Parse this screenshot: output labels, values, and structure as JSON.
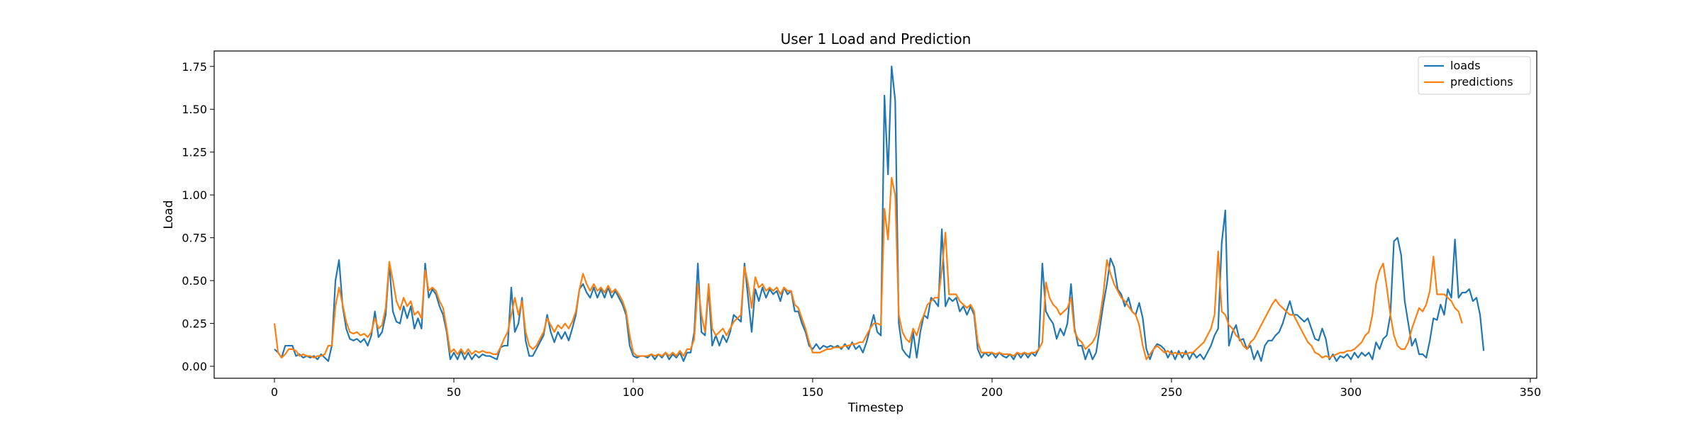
{
  "chart_data": {
    "type": "line",
    "title": "User 1 Load and Prediction",
    "xlabel": "Timestep",
    "ylabel": "Load",
    "xlim": [
      -16.8,
      351.8
    ],
    "ylim": [
      -0.07,
      1.84
    ],
    "xticks": [
      0,
      50,
      100,
      150,
      200,
      250,
      300,
      350
    ],
    "xtick_labels": [
      "0",
      "50",
      "100",
      "150",
      "200",
      "250",
      "300",
      "350"
    ],
    "yticks": [
      0.0,
      0.25,
      0.5,
      0.75,
      1.0,
      1.25,
      1.5,
      1.75
    ],
    "ytick_labels": [
      "0.00",
      "0.25",
      "0.50",
      "0.75",
      "1.00",
      "1.25",
      "1.50",
      "1.75"
    ],
    "grid": false,
    "legend_position": "top-right",
    "x_start": 0,
    "series": [
      {
        "name": "loads",
        "color": "#1f77b4",
        "values": [
          0.1,
          0.08,
          0.05,
          0.12,
          0.12,
          0.12,
          0.06,
          0.07,
          0.05,
          0.06,
          0.05,
          0.06,
          0.04,
          0.07,
          0.05,
          0.03,
          0.12,
          0.5,
          0.62,
          0.35,
          0.22,
          0.16,
          0.15,
          0.16,
          0.14,
          0.16,
          0.12,
          0.18,
          0.32,
          0.17,
          0.2,
          0.3,
          0.6,
          0.32,
          0.26,
          0.25,
          0.35,
          0.28,
          0.35,
          0.22,
          0.28,
          0.22,
          0.6,
          0.4,
          0.45,
          0.42,
          0.35,
          0.3,
          0.2,
          0.04,
          0.08,
          0.04,
          0.09,
          0.04,
          0.08,
          0.04,
          0.07,
          0.05,
          0.07,
          0.06,
          0.06,
          0.05,
          0.04,
          0.11,
          0.12,
          0.12,
          0.46,
          0.2,
          0.25,
          0.4,
          0.15,
          0.06,
          0.06,
          0.1,
          0.14,
          0.18,
          0.3,
          0.2,
          0.14,
          0.2,
          0.16,
          0.2,
          0.15,
          0.22,
          0.3,
          0.45,
          0.48,
          0.43,
          0.4,
          0.46,
          0.4,
          0.45,
          0.4,
          0.46,
          0.4,
          0.44,
          0.4,
          0.36,
          0.3,
          0.12,
          0.06,
          0.05,
          0.06,
          0.06,
          0.05,
          0.07,
          0.04,
          0.07,
          0.05,
          0.08,
          0.04,
          0.07,
          0.05,
          0.08,
          0.03,
          0.08,
          0.08,
          0.2,
          0.6,
          0.2,
          0.18,
          0.46,
          0.12,
          0.18,
          0.12,
          0.18,
          0.14,
          0.2,
          0.3,
          0.28,
          0.26,
          0.6,
          0.4,
          0.2,
          0.45,
          0.38,
          0.46,
          0.4,
          0.45,
          0.42,
          0.44,
          0.38,
          0.46,
          0.42,
          0.44,
          0.32,
          0.32,
          0.25,
          0.2,
          0.12,
          0.1,
          0.13,
          0.1,
          0.12,
          0.11,
          0.12,
          0.11,
          0.12,
          0.1,
          0.13,
          0.1,
          0.14,
          0.1,
          0.12,
          0.08,
          0.14,
          0.22,
          0.3,
          0.2,
          0.18,
          1.58,
          1.12,
          1.75,
          1.55,
          0.25,
          0.1,
          0.07,
          0.05,
          0.2,
          0.05,
          0.2,
          0.3,
          0.28,
          0.4,
          0.38,
          0.35,
          0.8,
          0.35,
          0.4,
          0.38,
          0.4,
          0.32,
          0.35,
          0.3,
          0.35,
          0.3,
          0.1,
          0.05,
          0.08,
          0.06,
          0.08,
          0.05,
          0.08,
          0.06,
          0.05,
          0.07,
          0.04,
          0.08,
          0.05,
          0.08,
          0.05,
          0.08,
          0.06,
          0.1,
          0.6,
          0.32,
          0.28,
          0.25,
          0.16,
          0.22,
          0.18,
          0.25,
          0.48,
          0.22,
          0.12,
          0.12,
          0.04,
          0.1,
          0.04,
          0.08,
          0.22,
          0.36,
          0.48,
          0.63,
          0.58,
          0.45,
          0.42,
          0.35,
          0.4,
          0.32,
          0.3,
          0.37,
          0.28,
          0.1,
          0.04,
          0.1,
          0.13,
          0.12,
          0.1,
          0.05,
          0.09,
          0.04,
          0.09,
          0.05,
          0.09,
          0.04,
          0.08,
          0.05,
          0.07,
          0.04,
          0.08,
          0.12,
          0.18,
          0.22,
          0.72,
          0.91,
          0.12,
          0.2,
          0.24,
          0.15,
          0.16,
          0.1,
          0.12,
          0.04,
          0.09,
          0.03,
          0.12,
          0.15,
          0.15,
          0.18,
          0.2,
          0.25,
          0.32,
          0.38,
          0.3,
          0.3,
          0.28,
          0.26,
          0.28,
          0.22,
          0.16,
          0.15,
          0.22,
          0.16,
          0.04,
          0.07,
          0.03,
          0.06,
          0.05,
          0.07,
          0.04,
          0.08,
          0.05,
          0.08,
          0.06,
          0.08,
          0.04,
          0.14,
          0.1,
          0.16,
          0.18,
          0.3,
          0.73,
          0.75,
          0.65,
          0.38,
          0.25,
          0.12,
          0.16,
          0.07,
          0.07,
          0.05,
          0.15,
          0.28,
          0.27,
          0.36,
          0.3,
          0.45,
          0.4,
          0.74,
          0.4,
          0.43,
          0.43,
          0.45,
          0.38,
          0.4,
          0.3,
          0.09
        ]
      },
      {
        "name": "predictions",
        "color": "#ff7f0e",
        "values": [
          0.25,
          0.08,
          0.05,
          0.07,
          0.1,
          0.1,
          0.09,
          0.06,
          0.07,
          0.06,
          0.06,
          0.05,
          0.06,
          0.06,
          0.07,
          0.12,
          0.12,
          0.35,
          0.46,
          0.36,
          0.26,
          0.2,
          0.19,
          0.2,
          0.18,
          0.19,
          0.17,
          0.2,
          0.28,
          0.22,
          0.24,
          0.34,
          0.61,
          0.5,
          0.38,
          0.33,
          0.4,
          0.35,
          0.38,
          0.3,
          0.32,
          0.28,
          0.56,
          0.44,
          0.46,
          0.44,
          0.38,
          0.34,
          0.22,
          0.08,
          0.1,
          0.07,
          0.1,
          0.07,
          0.1,
          0.07,
          0.09,
          0.08,
          0.09,
          0.08,
          0.08,
          0.07,
          0.07,
          0.11,
          0.16,
          0.2,
          0.3,
          0.4,
          0.3,
          0.38,
          0.2,
          0.12,
          0.1,
          0.12,
          0.16,
          0.2,
          0.28,
          0.24,
          0.2,
          0.24,
          0.22,
          0.25,
          0.22,
          0.26,
          0.32,
          0.45,
          0.54,
          0.48,
          0.44,
          0.48,
          0.44,
          0.46,
          0.43,
          0.47,
          0.43,
          0.45,
          0.42,
          0.38,
          0.32,
          0.18,
          0.08,
          0.06,
          0.06,
          0.06,
          0.06,
          0.07,
          0.06,
          0.07,
          0.06,
          0.08,
          0.06,
          0.08,
          0.06,
          0.09,
          0.06,
          0.1,
          0.1,
          0.16,
          0.48,
          0.3,
          0.2,
          0.48,
          0.22,
          0.18,
          0.2,
          0.22,
          0.18,
          0.22,
          0.26,
          0.28,
          0.3,
          0.58,
          0.48,
          0.34,
          0.52,
          0.46,
          0.48,
          0.44,
          0.46,
          0.44,
          0.46,
          0.42,
          0.46,
          0.44,
          0.44,
          0.36,
          0.34,
          0.28,
          0.22,
          0.14,
          0.08,
          0.08,
          0.08,
          0.09,
          0.1,
          0.1,
          0.11,
          0.11,
          0.11,
          0.12,
          0.12,
          0.13,
          0.13,
          0.14,
          0.14,
          0.18,
          0.22,
          0.25,
          0.25,
          0.24,
          0.92,
          0.74,
          1.1,
          1.0,
          0.3,
          0.2,
          0.16,
          0.14,
          0.22,
          0.18,
          0.25,
          0.3,
          0.36,
          0.38,
          0.4,
          0.4,
          0.56,
          0.78,
          0.42,
          0.42,
          0.42,
          0.38,
          0.36,
          0.34,
          0.36,
          0.32,
          0.14,
          0.08,
          0.08,
          0.08,
          0.08,
          0.07,
          0.08,
          0.07,
          0.07,
          0.07,
          0.06,
          0.08,
          0.07,
          0.08,
          0.07,
          0.08,
          0.08,
          0.1,
          0.14,
          0.49,
          0.4,
          0.36,
          0.34,
          0.3,
          0.32,
          0.34,
          0.4,
          0.2,
          0.16,
          0.14,
          0.1,
          0.12,
          0.14,
          0.18,
          0.28,
          0.42,
          0.62,
          0.54,
          0.48,
          0.44,
          0.4,
          0.38,
          0.35,
          0.32,
          0.3,
          0.24,
          0.12,
          0.04,
          0.07,
          0.1,
          0.12,
          0.1,
          0.08,
          0.09,
          0.07,
          0.08,
          0.07,
          0.08,
          0.07,
          0.08,
          0.08,
          0.1,
          0.12,
          0.14,
          0.18,
          0.22,
          0.3,
          0.67,
          0.32,
          0.3,
          0.24,
          0.22,
          0.18,
          0.16,
          0.12,
          0.1,
          0.14,
          0.16,
          0.2,
          0.24,
          0.28,
          0.32,
          0.36,
          0.39,
          0.36,
          0.34,
          0.32,
          0.3,
          0.3,
          0.26,
          0.22,
          0.18,
          0.14,
          0.12,
          0.08,
          0.07,
          0.05,
          0.06,
          0.05,
          0.06,
          0.07,
          0.08,
          0.08,
          0.09,
          0.09,
          0.1,
          0.12,
          0.14,
          0.18,
          0.2,
          0.3,
          0.48,
          0.56,
          0.6,
          0.46,
          0.3,
          0.18,
          0.12,
          0.1,
          0.1,
          0.14,
          0.22,
          0.28,
          0.34,
          0.32,
          0.36,
          0.44,
          0.64,
          0.42,
          0.42,
          0.42,
          0.4,
          0.38,
          0.34,
          0.32,
          0.25
        ]
      }
    ]
  }
}
